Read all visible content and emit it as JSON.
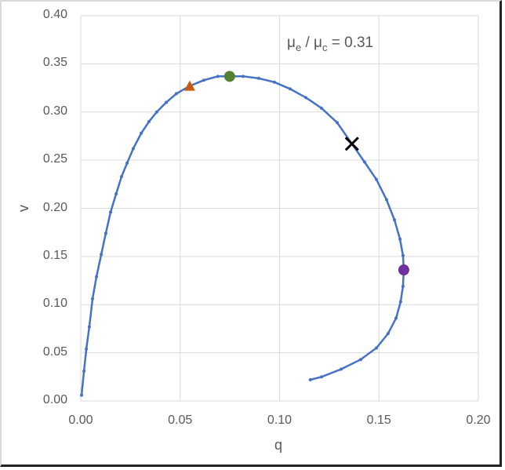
{
  "chart_data": {
    "type": "scatter",
    "title": "",
    "xlabel": "q",
    "ylabel": "v",
    "xlim": [
      0,
      0.2
    ],
    "ylim": [
      0,
      0.4
    ],
    "grid": true,
    "x_ticks": [
      "0.00",
      "0.05",
      "0.10",
      "0.15",
      "0.20"
    ],
    "y_ticks": [
      "0.00",
      "0.05",
      "0.10",
      "0.15",
      "0.20",
      "0.25",
      "0.30",
      "0.35",
      "0.40"
    ],
    "annotation": {
      "mu1": "μ",
      "sub1": "e",
      "sep": " / ",
      "mu2": "μ",
      "sub2": "c",
      "rest": " = 0.31"
    },
    "series": [
      {
        "name": "curve",
        "color": "#4472c4",
        "x": [
          0.0004,
          0.0016,
          0.0028,
          0.0043,
          0.0059,
          0.0079,
          0.0103,
          0.0126,
          0.015,
          0.0178,
          0.0205,
          0.0233,
          0.0264,
          0.0304,
          0.0343,
          0.0382,
          0.043,
          0.0481,
          0.0548,
          0.0619,
          0.069,
          0.0749,
          0.0817,
          0.0895,
          0.0974,
          0.1053,
          0.1132,
          0.1211,
          0.129,
          0.1364,
          0.1428,
          0.1487,
          0.1538,
          0.1578,
          0.1606,
          0.1621,
          0.1625,
          0.1621,
          0.1609,
          0.1586,
          0.1546,
          0.1487,
          0.1408,
          0.131,
          0.1211,
          0.1155
        ],
        "y": [
          0.006,
          0.031,
          0.054,
          0.077,
          0.106,
          0.129,
          0.152,
          0.174,
          0.196,
          0.215,
          0.233,
          0.247,
          0.262,
          0.278,
          0.29,
          0.3,
          0.31,
          0.319,
          0.327,
          0.333,
          0.337,
          0.337,
          0.337,
          0.335,
          0.331,
          0.324,
          0.315,
          0.304,
          0.289,
          0.267,
          0.248,
          0.23,
          0.209,
          0.188,
          0.168,
          0.151,
          0.136,
          0.119,
          0.103,
          0.086,
          0.07,
          0.055,
          0.043,
          0.033,
          0.025,
          0.022
        ]
      }
    ],
    "markers": [
      {
        "name": "triangle",
        "shape": "triangle",
        "color": "#c55a11",
        "x": 0.0548,
        "y": 0.327
      },
      {
        "name": "green-circle",
        "shape": "circle",
        "color": "#548235",
        "x": 0.0749,
        "y": 0.337
      },
      {
        "name": "black-x",
        "shape": "x",
        "color": "#000000",
        "x": 0.1364,
        "y": 0.267
      },
      {
        "name": "purple-circle",
        "shape": "circle",
        "color": "#7030a0",
        "x": 0.1625,
        "y": 0.136
      }
    ]
  }
}
